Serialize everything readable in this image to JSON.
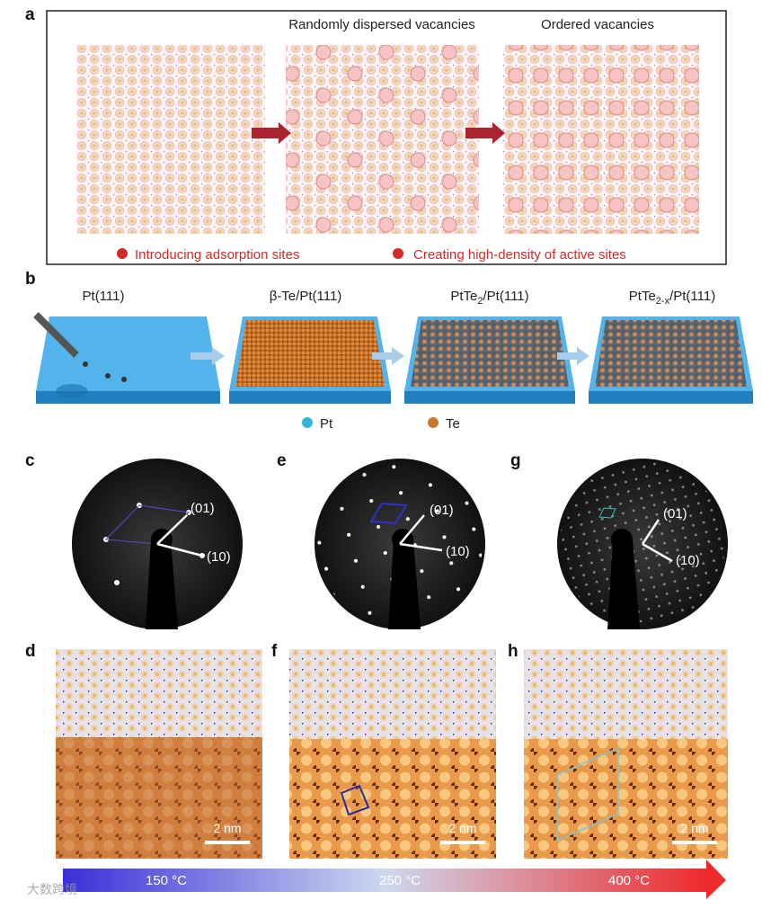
{
  "panel_labels": [
    "a",
    "b",
    "c",
    "d",
    "e",
    "f",
    "g",
    "h"
  ],
  "panel_a": {
    "titles": [
      "Randomly dispersed vacancies",
      "Ordered vacancies"
    ],
    "notes": [
      "Introducing adsorption sites",
      "Creating high-density of active sites"
    ]
  },
  "panel_b": {
    "stages": [
      [
        "Pt(111)"
      ],
      [
        "β-Te/Pt(111)"
      ],
      [
        "PtTe",
        "2",
        "/Pt(111)"
      ],
      [
        "PtTe",
        "2-x",
        "/Pt(111)"
      ]
    ],
    "legend": [
      "Pt",
      "Te"
    ]
  },
  "leed": [
    [
      "(01)",
      "(10)"
    ],
    [
      "(01)",
      "(10)"
    ],
    [
      "(01)",
      "(10)"
    ]
  ],
  "stm": [
    "2 nm",
    "2 nm",
    "2 nm"
  ],
  "temperature_bar": [
    "150 °C",
    "250 °C",
    "400 °C"
  ],
  "watermark": "大数跨境"
}
